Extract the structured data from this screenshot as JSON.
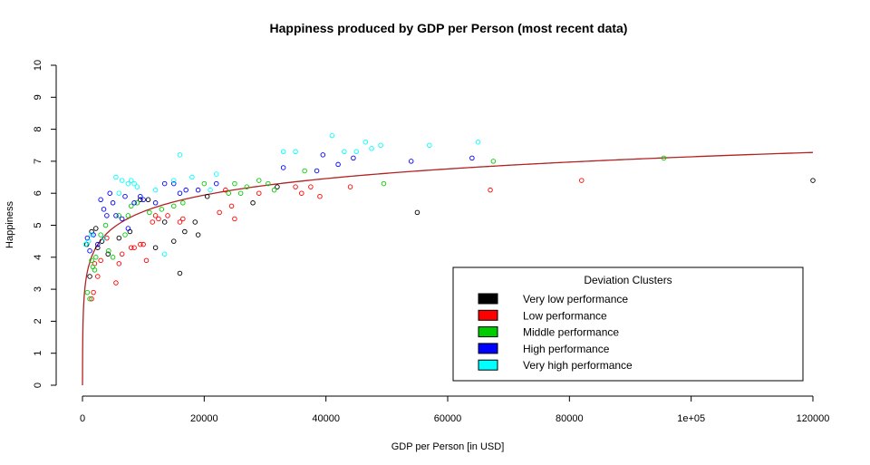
{
  "chart_data": {
    "type": "scatter",
    "title": "Happiness produced by GDP per Person (most recent data)",
    "xlabel": "GDP per Person [in USD]",
    "ylabel": "Happiness",
    "xlim": [
      0,
      120000
    ],
    "ylim": [
      0,
      10
    ],
    "x_ticks": [
      {
        "value": 0,
        "label": "0"
      },
      {
        "value": 20000,
        "label": "20000"
      },
      {
        "value": 40000,
        "label": "40000"
      },
      {
        "value": 60000,
        "label": "60000"
      },
      {
        "value": 80000,
        "label": "80000"
      },
      {
        "value": 100000,
        "label": "1e+05"
      },
      {
        "value": 120000,
        "label": "120000"
      }
    ],
    "y_ticks": [
      0,
      1,
      2,
      3,
      4,
      5,
      6,
      7,
      8,
      9,
      10
    ],
    "grid": false,
    "legend": {
      "title": "Deviation Clusters",
      "placement": "bottom-right",
      "entries": [
        {
          "label": "Very low performance",
          "color": "#000000"
        },
        {
          "label": "Low performance",
          "color": "#ff0000"
        },
        {
          "label": "Middle performance",
          "color": "#00cd00"
        },
        {
          "label": "High performance",
          "color": "#0000ff"
        },
        {
          "label": "Very high performance",
          "color": "#00ffff"
        }
      ]
    },
    "fit_curve": {
      "type": "log",
      "color": "#b22222"
    },
    "series": [
      {
        "name": "Very low performance",
        "color": "#000000",
        "points": [
          [
            700,
            4.4
          ],
          [
            1200,
            3.4
          ],
          [
            1500,
            4.8
          ],
          [
            2200,
            4.9
          ],
          [
            2500,
            4.3
          ],
          [
            3200,
            4.5
          ],
          [
            4200,
            4.1
          ],
          [
            6000,
            4.6
          ],
          [
            7800,
            4.8
          ],
          [
            9500,
            5.8
          ],
          [
            10800,
            5.8
          ],
          [
            12000,
            4.3
          ],
          [
            13500,
            5.1
          ],
          [
            15000,
            4.5
          ],
          [
            16000,
            3.5
          ],
          [
            16800,
            4.8
          ],
          [
            18500,
            5.1
          ],
          [
            19000,
            4.7
          ],
          [
            20500,
            5.9
          ],
          [
            28000,
            5.7
          ],
          [
            32000,
            6.2
          ],
          [
            55000,
            5.4
          ],
          [
            120000,
            6.4
          ]
        ]
      },
      {
        "name": "Low performance",
        "color": "#ff0000",
        "points": [
          [
            1500,
            2.7
          ],
          [
            1800,
            2.9
          ],
          [
            2000,
            3.8
          ],
          [
            2500,
            3.4
          ],
          [
            3000,
            3.9
          ],
          [
            4000,
            4.6
          ],
          [
            5500,
            3.2
          ],
          [
            6000,
            3.8
          ],
          [
            6500,
            4.1
          ],
          [
            8000,
            4.3
          ],
          [
            8500,
            4.3
          ],
          [
            9500,
            4.4
          ],
          [
            10000,
            4.4
          ],
          [
            10500,
            3.9
          ],
          [
            11500,
            5.1
          ],
          [
            12000,
            5.3
          ],
          [
            12500,
            5.2
          ],
          [
            14000,
            5.3
          ],
          [
            16000,
            5.1
          ],
          [
            16500,
            5.2
          ],
          [
            22500,
            5.4
          ],
          [
            23500,
            6.1
          ],
          [
            24500,
            5.6
          ],
          [
            25000,
            5.2
          ],
          [
            29000,
            6.0
          ],
          [
            35000,
            6.2
          ],
          [
            36000,
            6.0
          ],
          [
            37500,
            6.2
          ],
          [
            39000,
            5.9
          ],
          [
            44000,
            6.2
          ],
          [
            67000,
            6.1
          ],
          [
            82000,
            6.4
          ]
        ]
      },
      {
        "name": "Middle performance",
        "color": "#00cd00",
        "points": [
          [
            800,
            2.9
          ],
          [
            1200,
            2.7
          ],
          [
            1500,
            3.9
          ],
          [
            1700,
            3.7
          ],
          [
            2000,
            3.6
          ],
          [
            2200,
            4.0
          ],
          [
            3000,
            4.7
          ],
          [
            3800,
            5.0
          ],
          [
            4300,
            4.2
          ],
          [
            5000,
            4.0
          ],
          [
            6000,
            5.3
          ],
          [
            7000,
            4.7
          ],
          [
            7500,
            5.3
          ],
          [
            8000,
            5.6
          ],
          [
            9000,
            5.7
          ],
          [
            11000,
            5.4
          ],
          [
            13000,
            5.5
          ],
          [
            15000,
            5.6
          ],
          [
            16500,
            5.7
          ],
          [
            20000,
            6.3
          ],
          [
            24000,
            6.0
          ],
          [
            25000,
            6.3
          ],
          [
            26000,
            6.0
          ],
          [
            27000,
            6.2
          ],
          [
            29000,
            6.4
          ],
          [
            30500,
            6.3
          ],
          [
            31500,
            6.1
          ],
          [
            36500,
            6.7
          ],
          [
            49500,
            6.3
          ],
          [
            67500,
            7.0
          ],
          [
            95500,
            7.1
          ]
        ]
      },
      {
        "name": "High performance",
        "color": "#0000ff",
        "points": [
          [
            800,
            4.6
          ],
          [
            1200,
            4.2
          ],
          [
            1800,
            4.7
          ],
          [
            2500,
            4.4
          ],
          [
            3000,
            5.8
          ],
          [
            3500,
            5.5
          ],
          [
            4000,
            5.3
          ],
          [
            4500,
            6.0
          ],
          [
            5000,
            5.7
          ],
          [
            5500,
            5.3
          ],
          [
            6500,
            5.2
          ],
          [
            7000,
            5.9
          ],
          [
            7500,
            4.9
          ],
          [
            8500,
            5.7
          ],
          [
            9500,
            5.9
          ],
          [
            10000,
            5.8
          ],
          [
            12000,
            5.7
          ],
          [
            13500,
            6.3
          ],
          [
            15000,
            6.3
          ],
          [
            16000,
            6.0
          ],
          [
            17000,
            6.1
          ],
          [
            19000,
            6.1
          ],
          [
            22000,
            6.3
          ],
          [
            33000,
            6.8
          ],
          [
            38500,
            6.7
          ],
          [
            39500,
            7.2
          ],
          [
            42000,
            6.9
          ],
          [
            44500,
            7.1
          ],
          [
            54000,
            7.0
          ],
          [
            64000,
            7.1
          ]
        ]
      },
      {
        "name": "Very high performance",
        "color": "#00ffff",
        "points": [
          [
            500,
            4.4
          ],
          [
            1000,
            4.5
          ],
          [
            1500,
            4.7
          ],
          [
            3500,
            4.6
          ],
          [
            5500,
            6.5
          ],
          [
            6000,
            6.0
          ],
          [
            6500,
            6.4
          ],
          [
            7500,
            6.3
          ],
          [
            8000,
            6.4
          ],
          [
            8500,
            6.3
          ],
          [
            9000,
            6.2
          ],
          [
            12000,
            6.1
          ],
          [
            13500,
            4.1
          ],
          [
            15000,
            6.4
          ],
          [
            16000,
            7.2
          ],
          [
            18000,
            6.5
          ],
          [
            21000,
            6.1
          ],
          [
            22000,
            6.6
          ],
          [
            33000,
            7.3
          ],
          [
            35000,
            7.3
          ],
          [
            41000,
            7.8
          ],
          [
            43000,
            7.3
          ],
          [
            45000,
            7.3
          ],
          [
            46500,
            7.6
          ],
          [
            47500,
            7.4
          ],
          [
            49000,
            7.5
          ],
          [
            57000,
            7.5
          ],
          [
            65000,
            7.6
          ]
        ]
      }
    ]
  }
}
